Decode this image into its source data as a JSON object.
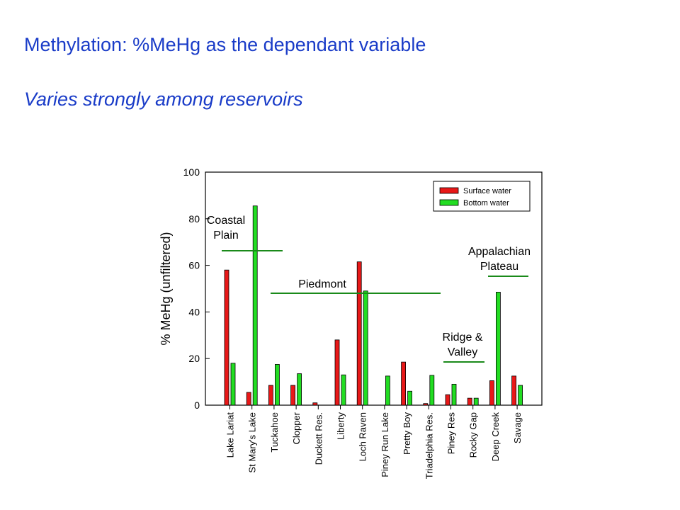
{
  "slide": {
    "title": "Methylation: %MeHg as the dependant  variable",
    "subtitle": "Varies strongly among reservoirs"
  },
  "chart_data": {
    "type": "bar",
    "title": "",
    "xlabel": "",
    "ylabel": "% MeHg (unfiltered)",
    "ylim": [
      0,
      100
    ],
    "yticks": [
      0,
      20,
      40,
      60,
      80,
      100
    ],
    "grid": false,
    "legend_position": "top-right",
    "categories": [
      "Lake Lariat",
      "St Mary's Lake",
      "Tuckahoe",
      "Clopper",
      "Duckett Res.",
      "Liberty",
      "Loch Raven",
      "Piney Run Lake",
      "Pretty Boy",
      "Triadelphia Res.",
      "Piney Res",
      "Rocky Gap",
      "Deep Creek",
      "Savage"
    ],
    "series": [
      {
        "name": "Surface water",
        "color": "#e81818",
        "values": [
          58,
          5.5,
          8.5,
          8.5,
          1,
          28,
          61.5,
          null,
          18.5,
          0.7,
          4.5,
          3,
          10.5,
          12.5
        ]
      },
      {
        "name": "Bottom water",
        "color": "#22dd22",
        "values": [
          18,
          85.5,
          17.5,
          13.5,
          null,
          13,
          49,
          12.5,
          6,
          12.8,
          9,
          3,
          48.5,
          8.5
        ]
      }
    ],
    "regions": [
      {
        "label_lines": [
          "Coastal",
          "Plain"
        ],
        "from_index": 0,
        "to_index": 2.5
      },
      {
        "label_lines": [
          "Piedmont"
        ],
        "from_index": 2,
        "to_index": 9.5
      },
      {
        "label_lines": [
          "Ridge &",
          "Valley"
        ],
        "from_index": 10,
        "to_index": 11.5
      },
      {
        "label_lines": [
          "Appalachian",
          "Plateau"
        ],
        "from_index": 12,
        "to_index": 13
      }
    ]
  }
}
